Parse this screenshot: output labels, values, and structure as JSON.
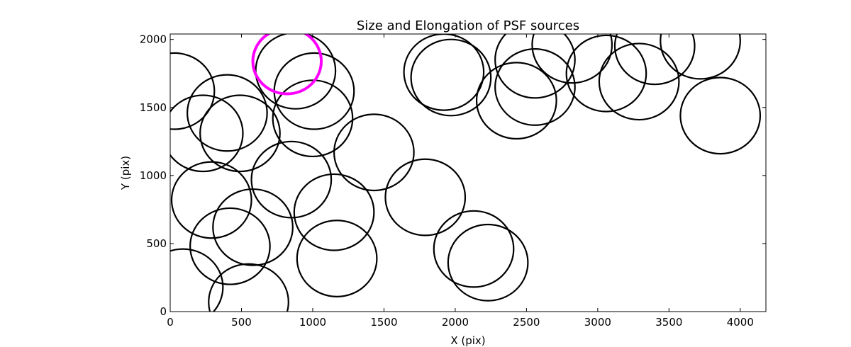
{
  "chart_data": {
    "type": "scatter",
    "title": "Size and Elongation of PSF sources",
    "xlabel": "X (pix)",
    "ylabel": "Y (pix)",
    "xlim": [
      0,
      4180
    ],
    "ylim": [
      0,
      2040
    ],
    "xticks": [
      0,
      500,
      1000,
      1500,
      2000,
      2500,
      3000,
      3500,
      4000
    ],
    "yticks": [
      0,
      500,
      1000,
      1500,
      2000
    ],
    "grid": false,
    "marker": "open-circle",
    "colors": {
      "default": "#000000",
      "highlight": "#ff00ff"
    },
    "sources": [
      {
        "x": 820,
        "y": 1840,
        "r": 240,
        "color": "highlight"
      },
      {
        "x": 30,
        "y": 1620,
        "r": 280
      },
      {
        "x": 230,
        "y": 1310,
        "r": 280
      },
      {
        "x": 400,
        "y": 1460,
        "r": 280
      },
      {
        "x": 490,
        "y": 1310,
        "r": 280
      },
      {
        "x": 880,
        "y": 1770,
        "r": 280
      },
      {
        "x": 1010,
        "y": 1620,
        "r": 280
      },
      {
        "x": 1000,
        "y": 1420,
        "r": 280
      },
      {
        "x": 1430,
        "y": 1170,
        "r": 280
      },
      {
        "x": 850,
        "y": 970,
        "r": 280
      },
      {
        "x": 290,
        "y": 820,
        "r": 280
      },
      {
        "x": 420,
        "y": 480,
        "r": 280
      },
      {
        "x": 580,
        "y": 620,
        "r": 280
      },
      {
        "x": 90,
        "y": 180,
        "r": 280
      },
      {
        "x": 550,
        "y": 70,
        "r": 280
      },
      {
        "x": 1150,
        "y": 730,
        "r": 280
      },
      {
        "x": 1170,
        "y": 390,
        "r": 280
      },
      {
        "x": 1790,
        "y": 840,
        "r": 280
      },
      {
        "x": 2130,
        "y": 460,
        "r": 280
      },
      {
        "x": 2230,
        "y": 360,
        "r": 280
      },
      {
        "x": 1920,
        "y": 1760,
        "r": 280
      },
      {
        "x": 1970,
        "y": 1720,
        "r": 280
      },
      {
        "x": 2430,
        "y": 1550,
        "r": 280
      },
      {
        "x": 2560,
        "y": 1650,
        "r": 280
      },
      {
        "x": 2560,
        "y": 1850,
        "r": 280
      },
      {
        "x": 2820,
        "y": 1960,
        "r": 280
      },
      {
        "x": 3060,
        "y": 1750,
        "r": 280
      },
      {
        "x": 3290,
        "y": 1690,
        "r": 280
      },
      {
        "x": 3400,
        "y": 1950,
        "r": 280
      },
      {
        "x": 3720,
        "y": 1990,
        "r": 280
      },
      {
        "x": 3860,
        "y": 1440,
        "r": 280
      }
    ]
  }
}
